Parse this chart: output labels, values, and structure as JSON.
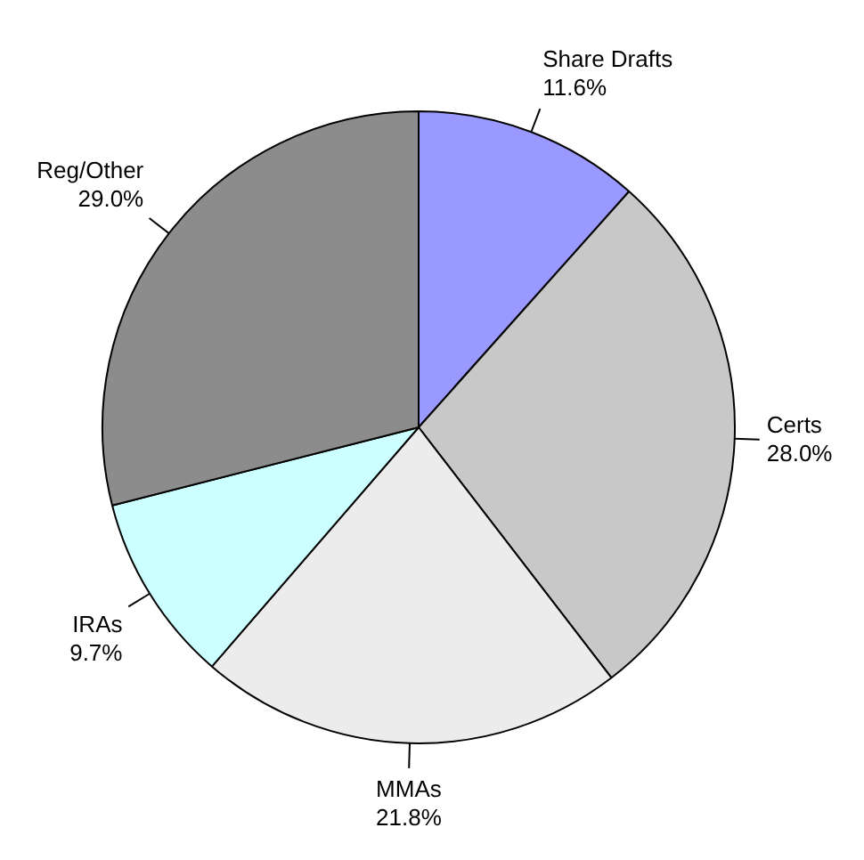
{
  "chart_data": {
    "type": "pie",
    "categories": [
      "Share Drafts",
      "Certs",
      "MMAs",
      "IRAs",
      "Reg/Other"
    ],
    "values": [
      11.6,
      28.0,
      21.8,
      9.7,
      29.0
    ],
    "value_labels": [
      "11.6%",
      "28.0%",
      "21.8%",
      "9.7%",
      "29.0%"
    ],
    "colors": [
      "#9999ff",
      "#c8c8c8",
      "#ececec",
      "#ccffff",
      "#8c8c8c"
    ],
    "legend": false
  }
}
